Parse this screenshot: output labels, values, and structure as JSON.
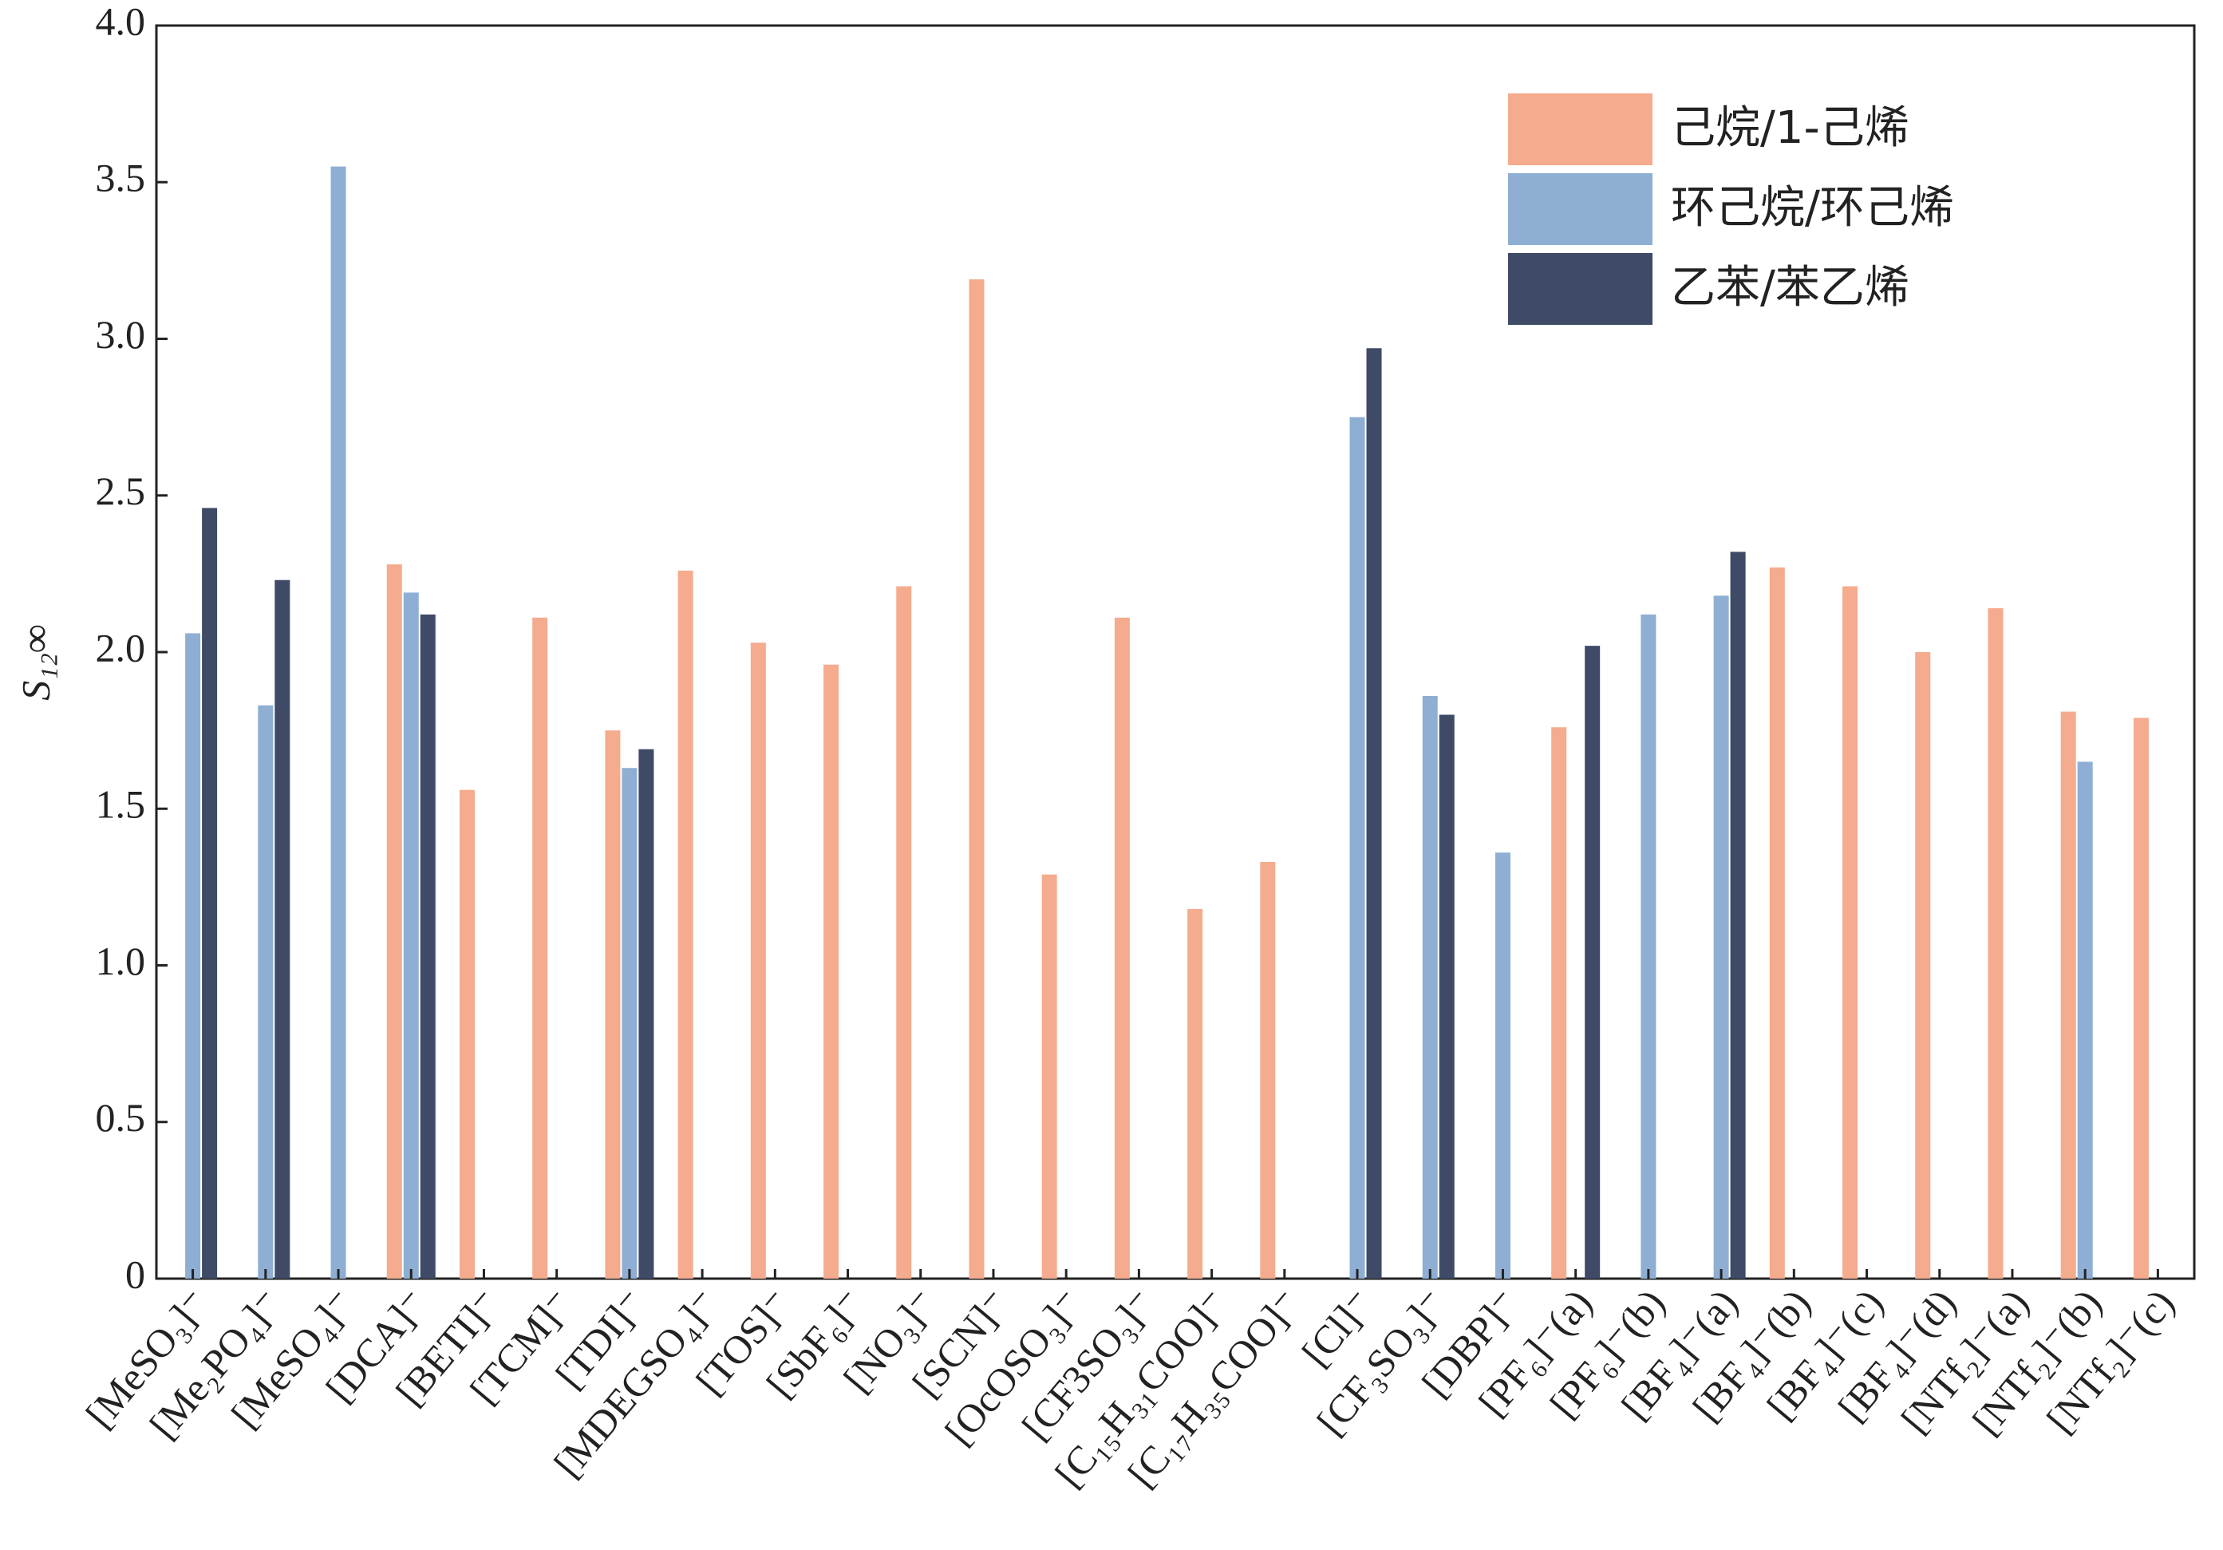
{
  "chart_data": {
    "type": "bar",
    "y_label": "S₁₂∞",
    "categories": [
      "[MeSO₃]⁻",
      "[Me₂PO₄]⁻",
      "[MeSO₄]⁻",
      "[DCA]⁻",
      "[BETI]⁻",
      "[TCM]⁻",
      "[TDI]⁻",
      "[MDEGSO₄]⁻",
      "[TOS]⁻",
      "[SbF₆]⁻",
      "[NO₃]⁻",
      "[SCN]⁻",
      "[OcOSO₃]⁻",
      "[CF3SO₃]⁻",
      "[C₁₅H₃₁COO]⁻",
      "[C₁₇H₃₅COO]⁻",
      "[Cl]⁻",
      "[CF₃SO₃]⁻",
      "[DBP]⁻",
      "[PF₆]⁻(a)",
      "[PF₆]⁻(b)",
      "[BF₄]⁻(a)",
      "[BF₄]⁻(b)",
      "[BF₄]⁻(c)",
      "[BF₄]⁻(d)",
      "[NTf₂]⁻(a)",
      "[NTf₂]⁻(b)",
      "[NTf₂]⁻(c)"
    ],
    "series": [
      {
        "name": "己烷/1-己烯",
        "color": "#f5ab8e",
        "values": [
          null,
          null,
          null,
          2.28,
          1.56,
          2.11,
          1.75,
          2.26,
          2.03,
          1.96,
          2.21,
          3.19,
          1.29,
          2.11,
          1.18,
          1.33,
          null,
          null,
          null,
          1.76,
          null,
          null,
          2.27,
          2.21,
          2.0,
          2.14,
          1.81,
          1.79
        ]
      },
      {
        "name": "环己烷/环己烯",
        "color": "#8eafd3",
        "values": [
          2.06,
          1.83,
          3.55,
          2.19,
          null,
          null,
          1.63,
          null,
          null,
          null,
          null,
          null,
          null,
          null,
          null,
          null,
          2.75,
          1.86,
          1.36,
          null,
          2.12,
          2.18,
          null,
          null,
          null,
          null,
          1.65,
          null
        ]
      },
      {
        "name": "乙苯/苯乙烯",
        "color": "#3e4a66",
        "values": [
          2.46,
          2.23,
          null,
          2.12,
          null,
          null,
          1.69,
          null,
          null,
          null,
          null,
          null,
          null,
          null,
          null,
          null,
          2.97,
          1.8,
          null,
          2.02,
          null,
          2.32,
          null,
          null,
          null,
          null,
          null,
          null
        ]
      }
    ],
    "ylim": [
      0,
      4
    ],
    "yticks": [
      0,
      0.5,
      {
        "value": 1,
        "label": "1.0"
      },
      1.5,
      {
        "value": 2,
        "label": "2.0"
      },
      2.5,
      {
        "value": 3,
        "label": "3.0"
      },
      3.5,
      {
        "value": 4,
        "label": "4.0"
      }
    ],
    "legend": "upper right"
  }
}
